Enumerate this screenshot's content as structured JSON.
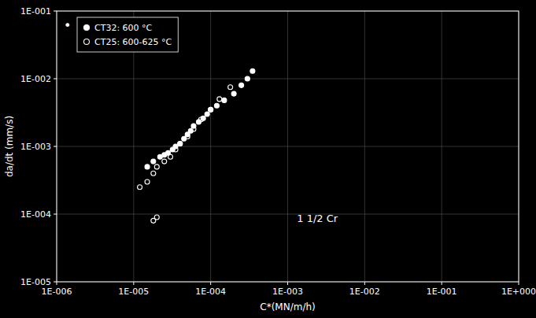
{
  "chart_data": {
    "type": "scatter",
    "title": "",
    "x_label": "C*(MN/m/h)",
    "y_label": "da/dt (mm/s)",
    "log": true,
    "grid": true,
    "legend": "upper left",
    "background_color": "#000000",
    "text_color": "#ffffff",
    "xlim": [
      1e-06,
      1.0
    ],
    "ylim": [
      1e-05,
      0.1
    ],
    "xticks": [
      {
        "value": 1e-06,
        "label": "1E-006"
      },
      {
        "value": 1e-05,
        "label": "1E-005"
      },
      {
        "value": 0.0001,
        "label": "1E-004"
      },
      {
        "value": 0.001,
        "label": "1E-003"
      },
      {
        "value": 0.01,
        "label": "1E-002"
      },
      {
        "value": 0.1,
        "label": "1E-001"
      },
      {
        "value": 1.0,
        "label": "1E+000"
      }
    ],
    "yticks": [
      {
        "value": 1e-05,
        "label": "1E-005"
      },
      {
        "value": 0.0001,
        "label": "1E-004"
      },
      {
        "value": 0.001,
        "label": "1E-003"
      },
      {
        "value": 0.01,
        "label": "1E-002"
      },
      {
        "value": 0.1,
        "label": "1E-001"
      }
    ],
    "annotations": [
      "1 1/2 Cr",
      "•"
    ],
    "series": [
      {
        "name": "CT32: 600 °C",
        "color": "#ffffff",
        "marker": "circle",
        "x": [
          1.5e-05,
          1.8e-05,
          2.2e-05,
          2.5e-05,
          2.8e-05,
          3.2e-05,
          3.5e-05,
          4e-05,
          4.5e-05,
          5e-05,
          5.5e-05,
          6e-05,
          7e-05,
          8e-05,
          9e-05,
          0.0001,
          0.00012,
          0.00015,
          0.0002,
          0.00025,
          0.0003,
          0.00035
        ],
        "values": [
          0.0005,
          0.0006,
          0.0007,
          0.00075,
          0.0008,
          0.0009,
          0.001,
          0.0011,
          0.0013,
          0.0015,
          0.0017,
          0.002,
          0.0023,
          0.0026,
          0.003,
          0.0035,
          0.004,
          0.0048,
          0.006,
          0.008,
          0.01,
          0.013
        ]
      },
      {
        "name": "CT25: 600-625 °C",
        "color": "#ffffff",
        "marker": "circle-open",
        "x": [
          1.2e-05,
          1.5e-05,
          1.8e-05,
          2e-05,
          2.5e-05,
          3e-05,
          3.5e-05,
          4e-05,
          5e-05,
          6e-05,
          7.5e-05,
          0.0001,
          0.00013,
          0.00018,
          1.8e-05,
          2e-05
        ],
        "values": [
          0.00025,
          0.0003,
          0.0004,
          0.0005,
          0.0006,
          0.0007,
          0.0009,
          0.0011,
          0.0014,
          0.0018,
          0.0025,
          0.0035,
          0.005,
          0.0075,
          8e-05,
          9e-05
        ]
      }
    ]
  }
}
